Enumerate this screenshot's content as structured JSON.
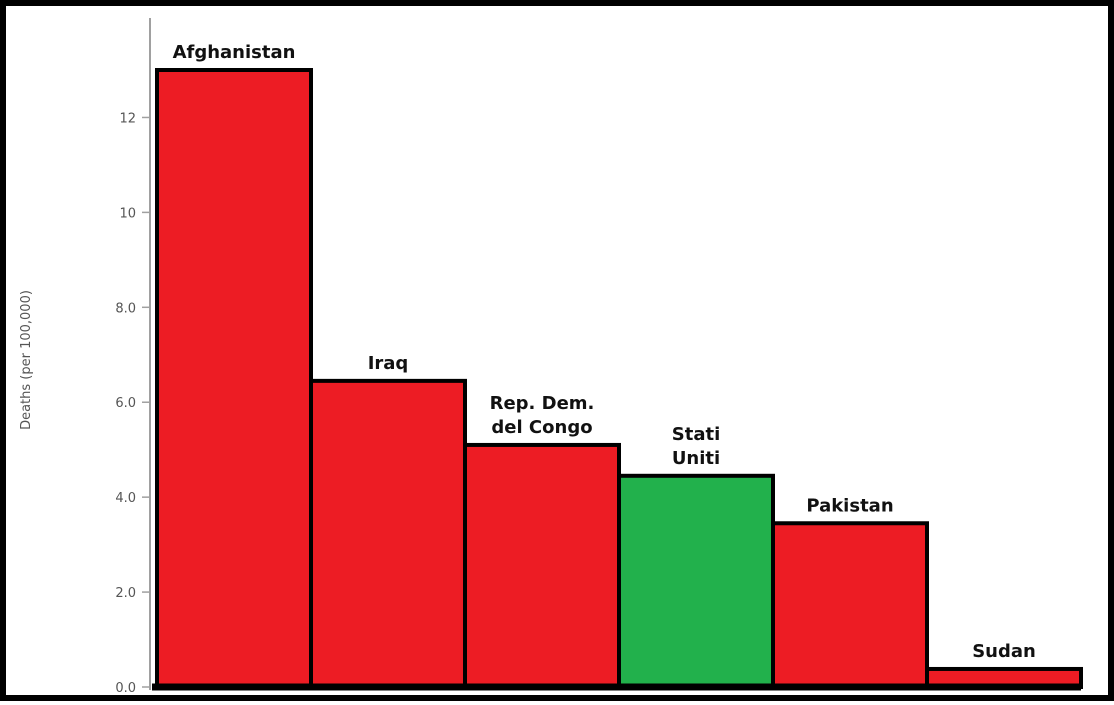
{
  "chart_data": {
    "type": "bar",
    "categories": [
      "Afghanistan",
      "Iraq",
      "Rep. Dem. del Congo",
      "Stati Uniti",
      "Pakistan",
      "Sudan"
    ],
    "category_label_lines": [
      [
        "Afghanistan"
      ],
      [
        "Iraq"
      ],
      [
        "Rep. Dem.",
        "del Congo"
      ],
      [
        "Stati",
        "Uniti"
      ],
      [
        "Pakistan"
      ],
      [
        "Sudan"
      ]
    ],
    "values": [
      13.0,
      6.45,
      5.1,
      4.45,
      3.45,
      0.38
    ],
    "bar_colors": [
      "#ed1c24",
      "#ed1c24",
      "#ed1c24",
      "#22b14c",
      "#ed1c24",
      "#ed1c24"
    ],
    "ylabel": "Deaths (per 100,000)",
    "ylim": [
      0,
      14
    ],
    "yticks": [
      0,
      2,
      4,
      6,
      8,
      10,
      12
    ],
    "ytick_labels": [
      "0.0",
      "2.0",
      "4.0",
      "6.0",
      "8.0",
      "10",
      "12"
    ],
    "grid": false,
    "legend": "none"
  }
}
